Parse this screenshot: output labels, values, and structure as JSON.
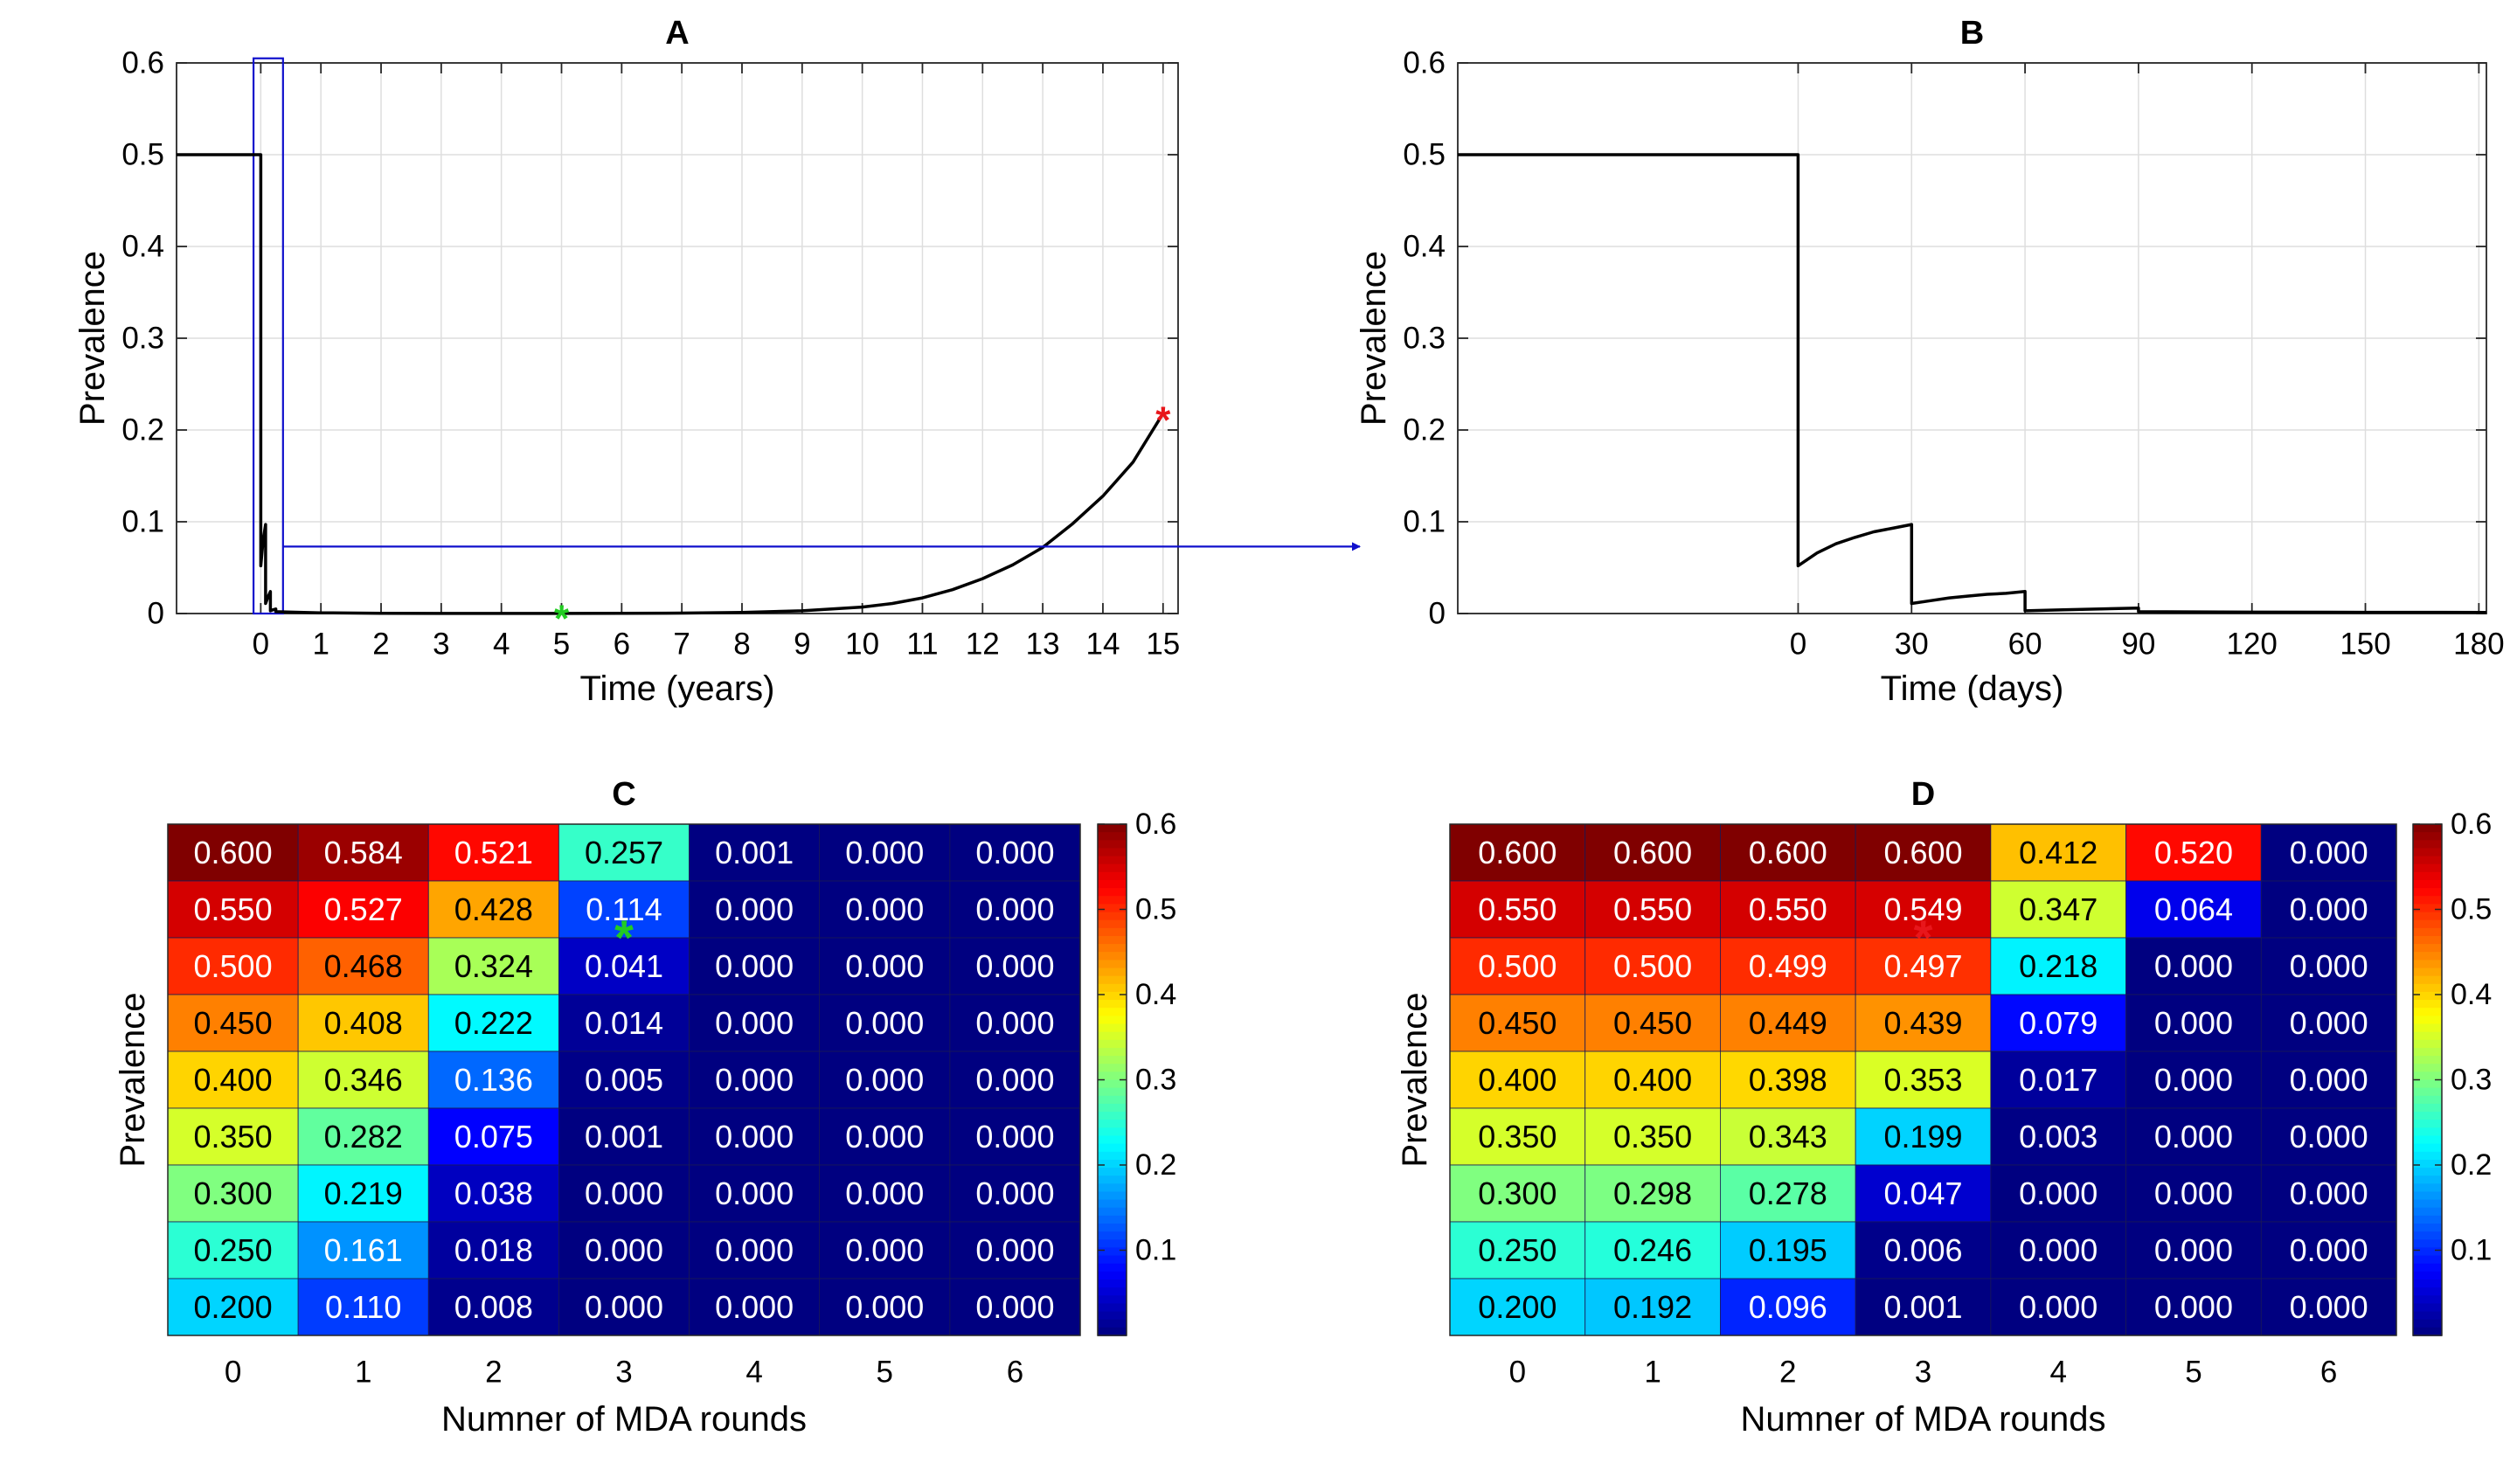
{
  "figure": {
    "panel_count": 4
  },
  "chart_data": [
    {
      "id": "A",
      "type": "line",
      "title": "A",
      "xlabel": "Time (years)",
      "ylabel": "Prevalence",
      "xlim": [
        -1.4,
        15.25
      ],
      "ylim": [
        0,
        0.6
      ],
      "xticks": [
        0,
        1,
        2,
        3,
        4,
        5,
        6,
        7,
        8,
        9,
        10,
        11,
        12,
        13,
        14,
        15
      ],
      "yticks": [
        0,
        0.1,
        0.2,
        0.3,
        0.4,
        0.5,
        0.6
      ],
      "grid": true,
      "series": [
        {
          "name": "prevalence",
          "color": "#000000",
          "x": [
            -1.4,
            0,
            0,
            0.04,
            0.08,
            0.08,
            0.12,
            0.16,
            0.16,
            0.2,
            0.25,
            0.25,
            0.5,
            1,
            2,
            3,
            4,
            5,
            6,
            7,
            8,
            9,
            10,
            10.5,
            11,
            11.5,
            12,
            12.5,
            13,
            13.5,
            14,
            14.5,
            15
          ],
          "y": [
            0.5,
            0.5,
            0.052,
            0.08,
            0.097,
            0.011,
            0.018,
            0.024,
            0.003,
            0.004,
            0.005,
            0.002,
            0.0015,
            0.0008,
            0.0003,
            0.0001,
            0.0001,
            0.0001,
            0.0002,
            0.0005,
            0.0012,
            0.003,
            0.007,
            0.011,
            0.017,
            0.026,
            0.038,
            0.053,
            0.072,
            0.098,
            0.128,
            0.165,
            0.218
          ]
        }
      ],
      "markers": [
        {
          "x": 5,
          "y": 0.002,
          "symbol": "*",
          "color": "#22cc22"
        },
        {
          "x": 15,
          "y": 0.218,
          "symbol": "*",
          "color": "#e8161b"
        }
      ],
      "zoom_box": {
        "x0": -0.12,
        "x1": 0.37,
        "y0": 0,
        "y1": 0.605,
        "color": "#1010cc"
      },
      "zoom_arrow_y": 0.073
    },
    {
      "id": "B",
      "type": "line",
      "title": "B",
      "xlabel": "Time (days)",
      "ylabel": "Prevalence",
      "xlim": [
        -90,
        182
      ],
      "ylim": [
        0,
        0.6
      ],
      "xticks": [
        0,
        30,
        60,
        90,
        120,
        150,
        180
      ],
      "yticks": [
        0,
        0.1,
        0.2,
        0.3,
        0.4,
        0.5,
        0.6
      ],
      "grid": true,
      "series": [
        {
          "name": "prevalence",
          "color": "#000000",
          "x": [
            -90,
            0,
            0,
            5,
            10,
            15,
            20,
            25,
            30,
            30,
            35,
            40,
            45,
            50,
            55,
            60,
            60,
            70,
            80,
            90,
            90,
            120,
            150,
            182
          ],
          "y": [
            0.5,
            0.5,
            0.052,
            0.066,
            0.076,
            0.083,
            0.089,
            0.093,
            0.097,
            0.011,
            0.014,
            0.017,
            0.019,
            0.021,
            0.022,
            0.024,
            0.003,
            0.004,
            0.005,
            0.006,
            0.002,
            0.0015,
            0.0013,
            0.0012
          ]
        }
      ]
    },
    {
      "id": "C",
      "type": "heatmap",
      "title": "C",
      "xlabel": "Numner of MDA rounds",
      "ylabel": "Prevalence",
      "x_categories": [
        "0",
        "1",
        "2",
        "3",
        "4",
        "5",
        "6"
      ],
      "colorbar_range": [
        0,
        0.6
      ],
      "colorbar_ticks": [
        0.1,
        0.2,
        0.3,
        0.4,
        0.5,
        0.6
      ],
      "rows": [
        [
          "0.600",
          "0.584",
          "0.521",
          "0.257",
          "0.001",
          "0.000",
          "0.000"
        ],
        [
          "0.550",
          "0.527",
          "0.428",
          "0.114",
          "0.000",
          "0.000",
          "0.000"
        ],
        [
          "0.500",
          "0.468",
          "0.324",
          "0.041",
          "0.000",
          "0.000",
          "0.000"
        ],
        [
          "0.450",
          "0.408",
          "0.222",
          "0.014",
          "0.000",
          "0.000",
          "0.000"
        ],
        [
          "0.400",
          "0.346",
          "0.136",
          "0.005",
          "0.000",
          "0.000",
          "0.000"
        ],
        [
          "0.350",
          "0.282",
          "0.075",
          "0.001",
          "0.000",
          "0.000",
          "0.000"
        ],
        [
          "0.300",
          "0.219",
          "0.038",
          "0.000",
          "0.000",
          "0.000",
          "0.000"
        ],
        [
          "0.250",
          "0.161",
          "0.018",
          "0.000",
          "0.000",
          "0.000",
          "0.000"
        ],
        [
          "0.200",
          "0.110",
          "0.008",
          "0.000",
          "0.000",
          "0.000",
          "0.000"
        ]
      ],
      "markers": [
        {
          "col": 3.5,
          "row": 1.9,
          "symbol": "*",
          "color": "#22cc22"
        }
      ]
    },
    {
      "id": "D",
      "type": "heatmap",
      "title": "D",
      "xlabel": "Numner of MDA rounds",
      "ylabel": "Prevalence",
      "x_categories": [
        "0",
        "1",
        "2",
        "3",
        "4",
        "5",
        "6"
      ],
      "colorbar_range": [
        0,
        0.6
      ],
      "colorbar_ticks": [
        0.1,
        0.2,
        0.3,
        0.4,
        0.5,
        0.6
      ],
      "rows": [
        [
          "0.600",
          "0.600",
          "0.600",
          "0.600",
          "0.412",
          "0.520",
          "0.000"
        ],
        [
          "0.550",
          "0.550",
          "0.550",
          "0.549",
          "0.347",
          "0.064",
          "0.000"
        ],
        [
          "0.500",
          "0.500",
          "0.499",
          "0.497",
          "0.218",
          "0.000",
          "0.000"
        ],
        [
          "0.450",
          "0.450",
          "0.449",
          "0.439",
          "0.079",
          "0.000",
          "0.000"
        ],
        [
          "0.400",
          "0.400",
          "0.398",
          "0.353",
          "0.017",
          "0.000",
          "0.000"
        ],
        [
          "0.350",
          "0.350",
          "0.343",
          "0.199",
          "0.003",
          "0.000",
          "0.000"
        ],
        [
          "0.300",
          "0.298",
          "0.278",
          "0.047",
          "0.000",
          "0.000",
          "0.000"
        ],
        [
          "0.250",
          "0.246",
          "0.195",
          "0.006",
          "0.000",
          "0.000",
          "0.000"
        ],
        [
          "0.200",
          "0.192",
          "0.096",
          "0.001",
          "0.000",
          "0.000",
          "0.000"
        ]
      ],
      "markers": [
        {
          "col": 3.5,
          "row": 1.9,
          "symbol": "*",
          "color": "#e8161b"
        }
      ]
    }
  ]
}
